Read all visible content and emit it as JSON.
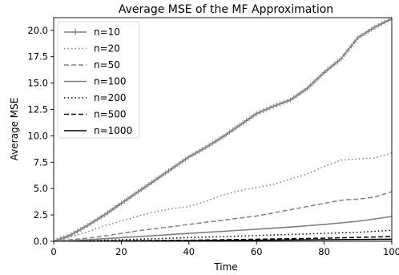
{
  "chart_data": {
    "type": "line",
    "title": "Average MSE of the MF Approximation",
    "xlabel": "Time",
    "ylabel": "Average MSE",
    "xlim": [
      0,
      100
    ],
    "ylim": [
      0,
      21.2
    ],
    "xticks": [
      0,
      20,
      40,
      60,
      80,
      100
    ],
    "xtick_labels": [
      "0",
      "20",
      "40",
      "60",
      "80",
      "100"
    ],
    "yticks": [
      0,
      2.5,
      5,
      7.5,
      10,
      12.5,
      15,
      17.5,
      20
    ],
    "ytick_labels": [
      "0.0",
      "2.5",
      "5.0",
      "7.5",
      "10.0",
      "12.5",
      "15.0",
      "17.5",
      "20.0"
    ],
    "grid": false,
    "legend_position": "upper-left",
    "series": [
      {
        "name": "n=10",
        "color": "#808080",
        "style": "solid-plus",
        "x": [
          0,
          5,
          10,
          15,
          20,
          25,
          30,
          35,
          40,
          45,
          50,
          55,
          60,
          65,
          70,
          75,
          80,
          85,
          90,
          95,
          100
        ],
        "y": [
          0,
          0.6,
          1.5,
          2.5,
          3.6,
          4.7,
          5.8,
          6.9,
          8.0,
          8.9,
          9.9,
          11.0,
          12.1,
          12.8,
          13.4,
          14.5,
          16.0,
          17.3,
          19.3,
          20.3,
          21.1
        ]
      },
      {
        "name": "n=20",
        "color": "#808080",
        "style": "dotted",
        "x": [
          0,
          5,
          10,
          15,
          20,
          25,
          30,
          35,
          40,
          45,
          50,
          55,
          60,
          65,
          70,
          75,
          80,
          85,
          90,
          95,
          100
        ],
        "y": [
          0,
          0.4,
          0.9,
          1.5,
          1.9,
          2.4,
          2.8,
          3.1,
          3.3,
          3.8,
          4.4,
          4.8,
          5.1,
          5.4,
          5.9,
          6.4,
          7.1,
          7.7,
          7.8,
          7.9,
          8.4
        ]
      },
      {
        "name": "n=50",
        "color": "#808080",
        "style": "dashed",
        "x": [
          0,
          5,
          10,
          15,
          20,
          25,
          30,
          35,
          40,
          45,
          50,
          55,
          60,
          65,
          70,
          75,
          80,
          85,
          90,
          95,
          100
        ],
        "y": [
          0,
          0.15,
          0.3,
          0.5,
          0.75,
          1.0,
          1.2,
          1.4,
          1.6,
          1.8,
          2.0,
          2.2,
          2.4,
          2.7,
          3.0,
          3.3,
          3.6,
          3.9,
          4.0,
          4.2,
          4.7
        ]
      },
      {
        "name": "n=100",
        "color": "#808080",
        "style": "solid",
        "x": [
          0,
          10,
          20,
          30,
          40,
          50,
          60,
          70,
          80,
          90,
          100
        ],
        "y": [
          0,
          0.15,
          0.35,
          0.55,
          0.75,
          0.95,
          1.15,
          1.35,
          1.6,
          1.9,
          2.35
        ]
      },
      {
        "name": "n=200",
        "color": "#000000",
        "style": "dotted",
        "x": [
          0,
          10,
          20,
          30,
          40,
          50,
          60,
          70,
          80,
          90,
          100
        ],
        "y": [
          0,
          0.05,
          0.15,
          0.25,
          0.35,
          0.45,
          0.55,
          0.65,
          0.75,
          0.85,
          1.05
        ]
      },
      {
        "name": "n=500",
        "color": "#000000",
        "style": "dashed",
        "x": [
          0,
          20,
          40,
          60,
          80,
          100
        ],
        "y": [
          0,
          0.05,
          0.1,
          0.2,
          0.3,
          0.45
        ]
      },
      {
        "name": "n=1000",
        "color": "#000000",
        "style": "solid",
        "x": [
          0,
          20,
          40,
          60,
          80,
          100
        ],
        "y": [
          0,
          0.03,
          0.06,
          0.1,
          0.15,
          0.2
        ]
      }
    ]
  }
}
